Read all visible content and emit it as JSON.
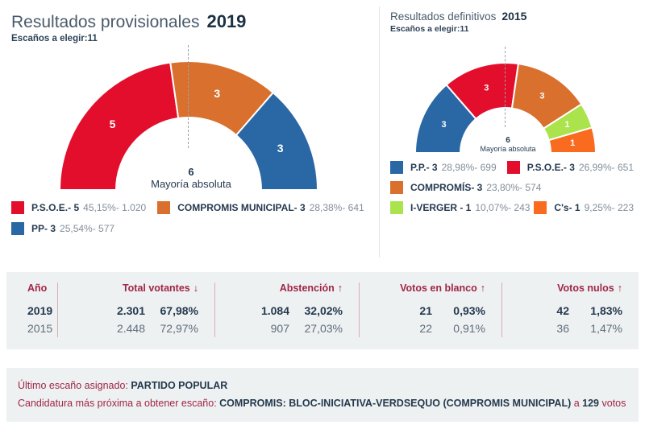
{
  "left_panel": {
    "title": "Resultados provisionales",
    "year": "2019",
    "seats_label": "Escaños a elegir:",
    "seats_value": "11",
    "majority_value": "6",
    "majority_label": "Mayoría absoluta",
    "legend_rows": [
      [
        {
          "color": "#e20e2c",
          "name": "P.S.O.E.- 5",
          "detail": "45,15%- 1.020"
        },
        {
          "color": "#d9702e",
          "name": "COMPROMIS MUNICIPAL- 3",
          "detail": "28,38%- 641"
        }
      ],
      [
        {
          "color": "#2a67a5",
          "name": "PP- 3",
          "detail": "25,54%- 577"
        }
      ]
    ]
  },
  "right_panel": {
    "title": "Resultados definitivos",
    "year": "2015",
    "seats_label": "Escaños a elegir:",
    "seats_value": "11",
    "majority_value": "6",
    "majority_label": "Mayoría absoluta",
    "legend_rows": [
      [
        {
          "color": "#2a67a5",
          "name": "P.P.- 3",
          "detail": "28,98%- 699"
        },
        {
          "color": "#e20e2c",
          "name": "P.S.O.E.- 3",
          "detail": "26,99%- 651"
        }
      ],
      [
        {
          "color": "#d9702e",
          "name": "COMPROMÍS- 3",
          "detail": "23,80%- 574"
        }
      ],
      [
        {
          "color": "#abe34d",
          "name": "I-VERGER - 1",
          "detail": "10,07%- 243"
        },
        {
          "color": "#f96b1f",
          "name": "C's- 1",
          "detail": "9,25%- 223"
        }
      ]
    ]
  },
  "chart_data": [
    {
      "type": "pie",
      "subtype": "half-donut",
      "title": "Resultados provisionales 2019",
      "total_seats": 11,
      "majority": 6,
      "segments": [
        {
          "name": "P.S.O.E.",
          "seats": 5,
          "pct": "45,15%",
          "votes": "1.020",
          "color": "#e20e2c"
        },
        {
          "name": "COMPROMIS MUNICIPAL",
          "seats": 3,
          "pct": "28,38%",
          "votes": "641",
          "color": "#d9702e"
        },
        {
          "name": "PP",
          "seats": 3,
          "pct": "25,54%",
          "votes": "577",
          "color": "#2a67a5"
        }
      ]
    },
    {
      "type": "pie",
      "subtype": "half-donut",
      "title": "Resultados definitivos 2015",
      "total_seats": 11,
      "majority": 6,
      "segments": [
        {
          "name": "P.P.",
          "seats": 3,
          "pct": "28,98%",
          "votes": "699",
          "color": "#2a67a5"
        },
        {
          "name": "P.S.O.E.",
          "seats": 3,
          "pct": "26,99%",
          "votes": "651",
          "color": "#e20e2c"
        },
        {
          "name": "COMPROMÍS",
          "seats": 3,
          "pct": "23,80%",
          "votes": "574",
          "color": "#d9702e"
        },
        {
          "name": "I-VERGER",
          "seats": 1,
          "pct": "10,07%",
          "votes": "243",
          "color": "#abe34d"
        },
        {
          "name": "C's",
          "seats": 1,
          "pct": "9,25%",
          "votes": "223",
          "color": "#f96b1f"
        }
      ]
    }
  ],
  "table": {
    "headers": [
      {
        "label": "Año",
        "arrow": ""
      },
      {
        "label": "Total votantes",
        "arrow": "↓"
      },
      {
        "label": "Abstención",
        "arrow": "↑"
      },
      {
        "label": "Votos en blanco",
        "arrow": "↑"
      },
      {
        "label": "Votos nulos",
        "arrow": "↑"
      }
    ],
    "rows": [
      {
        "year": "2019",
        "cells": [
          {
            "count": "2.301",
            "pct": "67,98%"
          },
          {
            "count": "1.084",
            "pct": "32,02%"
          },
          {
            "count": "21",
            "pct": "0,93%"
          },
          {
            "count": "42",
            "pct": "1,83%"
          }
        ]
      },
      {
        "year": "2015",
        "cells": [
          {
            "count": "2.448",
            "pct": "72,97%"
          },
          {
            "count": "907",
            "pct": "27,03%"
          },
          {
            "count": "22",
            "pct": "0,91%"
          },
          {
            "count": "36",
            "pct": "1,47%"
          }
        ]
      }
    ]
  },
  "footer": {
    "line1_label": "Último escaño asignado: ",
    "line1_value": "PARTIDO POPULAR",
    "line2_label": "Candidatura más próxima a obtener escaño: ",
    "line2_value": "COMPROMIS: BLOC-INICIATIVA-VERDSEQUO (COMPROMIS MUNICIPAL)",
    "line2_conj": " a ",
    "line2_votes": "129",
    "line2_votes_word": " votos"
  }
}
